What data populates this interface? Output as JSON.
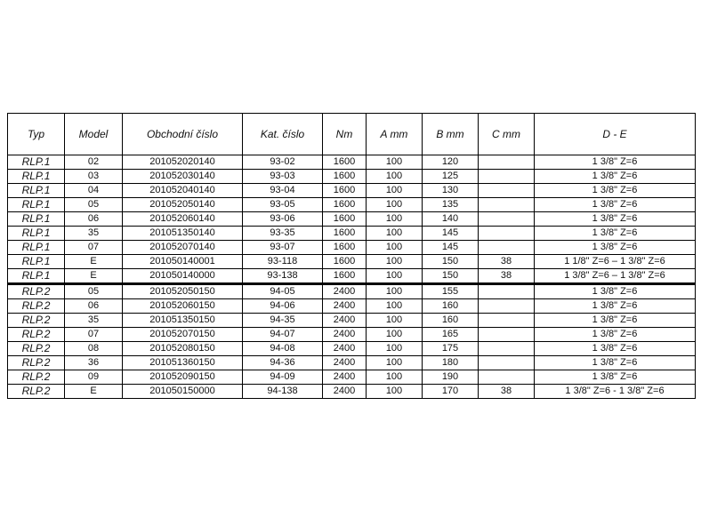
{
  "table": {
    "headers": [
      "Typ",
      "Model",
      "Obchodní číslo",
      "Kat. číslo",
      "Nm",
      "A mm",
      "B mm",
      "C mm",
      "D - E"
    ],
    "rows": [
      [
        "RLP.1",
        "02",
        "201052020140",
        "93-02",
        "1600",
        "100",
        "120",
        "",
        "1 3/8\" Z=6"
      ],
      [
        "RLP.1",
        "03",
        "201052030140",
        "93-03",
        "1600",
        "100",
        "125",
        "",
        "1 3/8\" Z=6"
      ],
      [
        "RLP.1",
        "04",
        "201052040140",
        "93-04",
        "1600",
        "100",
        "130",
        "",
        "1 3/8\" Z=6"
      ],
      [
        "RLP.1",
        "05",
        "201052050140",
        "93-05",
        "1600",
        "100",
        "135",
        "",
        "1 3/8\" Z=6"
      ],
      [
        "RLP.1",
        "06",
        "201052060140",
        "93-06",
        "1600",
        "100",
        "140",
        "",
        "1 3/8\" Z=6"
      ],
      [
        "RLP.1",
        "35",
        "201051350140",
        "93-35",
        "1600",
        "100",
        "145",
        "",
        "1 3/8\" Z=6"
      ],
      [
        "RLP.1",
        "07",
        "201052070140",
        "93-07",
        "1600",
        "100",
        "145",
        "",
        "1 3/8\" Z=6"
      ],
      [
        "RLP.1",
        "E",
        "201050140001",
        "93-118",
        "1600",
        "100",
        "150",
        "38",
        "1 1/8\" Z=6 – 1 3/8\" Z=6"
      ],
      [
        "RLP.1",
        "E",
        "201050140000",
        "93-138",
        "1600",
        "100",
        "150",
        "38",
        "1 3/8\" Z=6 – 1 3/8\" Z=6"
      ],
      [
        "RLP.2",
        "05",
        "201052050150",
        "94-05",
        "2400",
        "100",
        "155",
        "",
        "1 3/8\" Z=6"
      ],
      [
        "RLP.2",
        "06",
        "201052060150",
        "94-06",
        "2400",
        "100",
        "160",
        "",
        "1 3/8\" Z=6"
      ],
      [
        "RLP.2",
        "35",
        "201051350150",
        "94-35",
        "2400",
        "100",
        "160",
        "",
        "1 3/8\" Z=6"
      ],
      [
        "RLP.2",
        "07",
        "201052070150",
        "94-07",
        "2400",
        "100",
        "165",
        "",
        "1 3/8\" Z=6"
      ],
      [
        "RLP.2",
        "08",
        "201052080150",
        "94-08",
        "2400",
        "100",
        "175",
        "",
        "1 3/8\" Z=6"
      ],
      [
        "RLP.2",
        "36",
        "201051360150",
        "94-36",
        "2400",
        "100",
        "180",
        "",
        "1 3/8\" Z=6"
      ],
      [
        "RLP.2",
        "09",
        "201052090150",
        "94-09",
        "2400",
        "100",
        "190",
        "",
        "1 3/8\" Z=6"
      ],
      [
        "RLP.2",
        "E",
        "201050150000",
        "94-138",
        "2400",
        "100",
        "170",
        "38",
        "1 3/8\" Z=6 - 1 3/8\" Z=6"
      ]
    ]
  }
}
